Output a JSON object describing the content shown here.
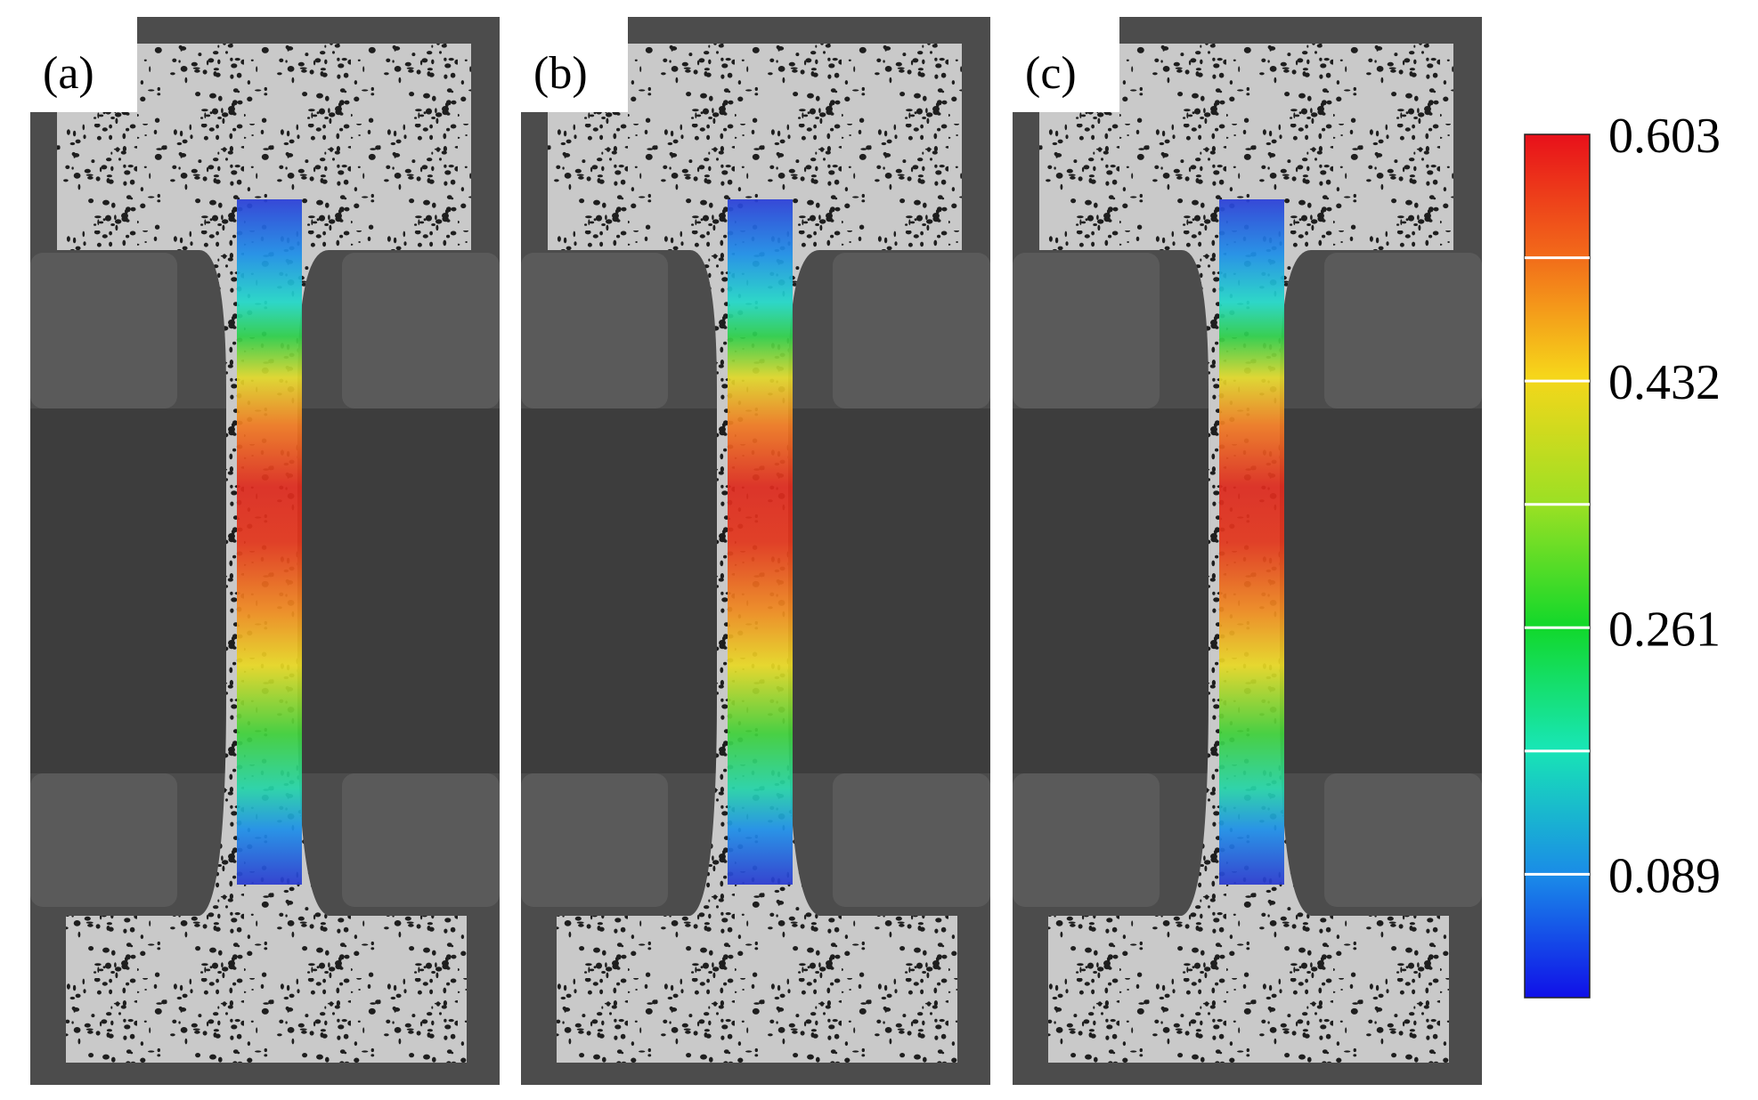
{
  "panels": [
    {
      "label": "(a)"
    },
    {
      "label": "(b)"
    },
    {
      "label": "(c)"
    }
  ],
  "colorbar": {
    "labels": [
      "0.603",
      "0.432",
      "0.261",
      "0.089"
    ]
  }
}
